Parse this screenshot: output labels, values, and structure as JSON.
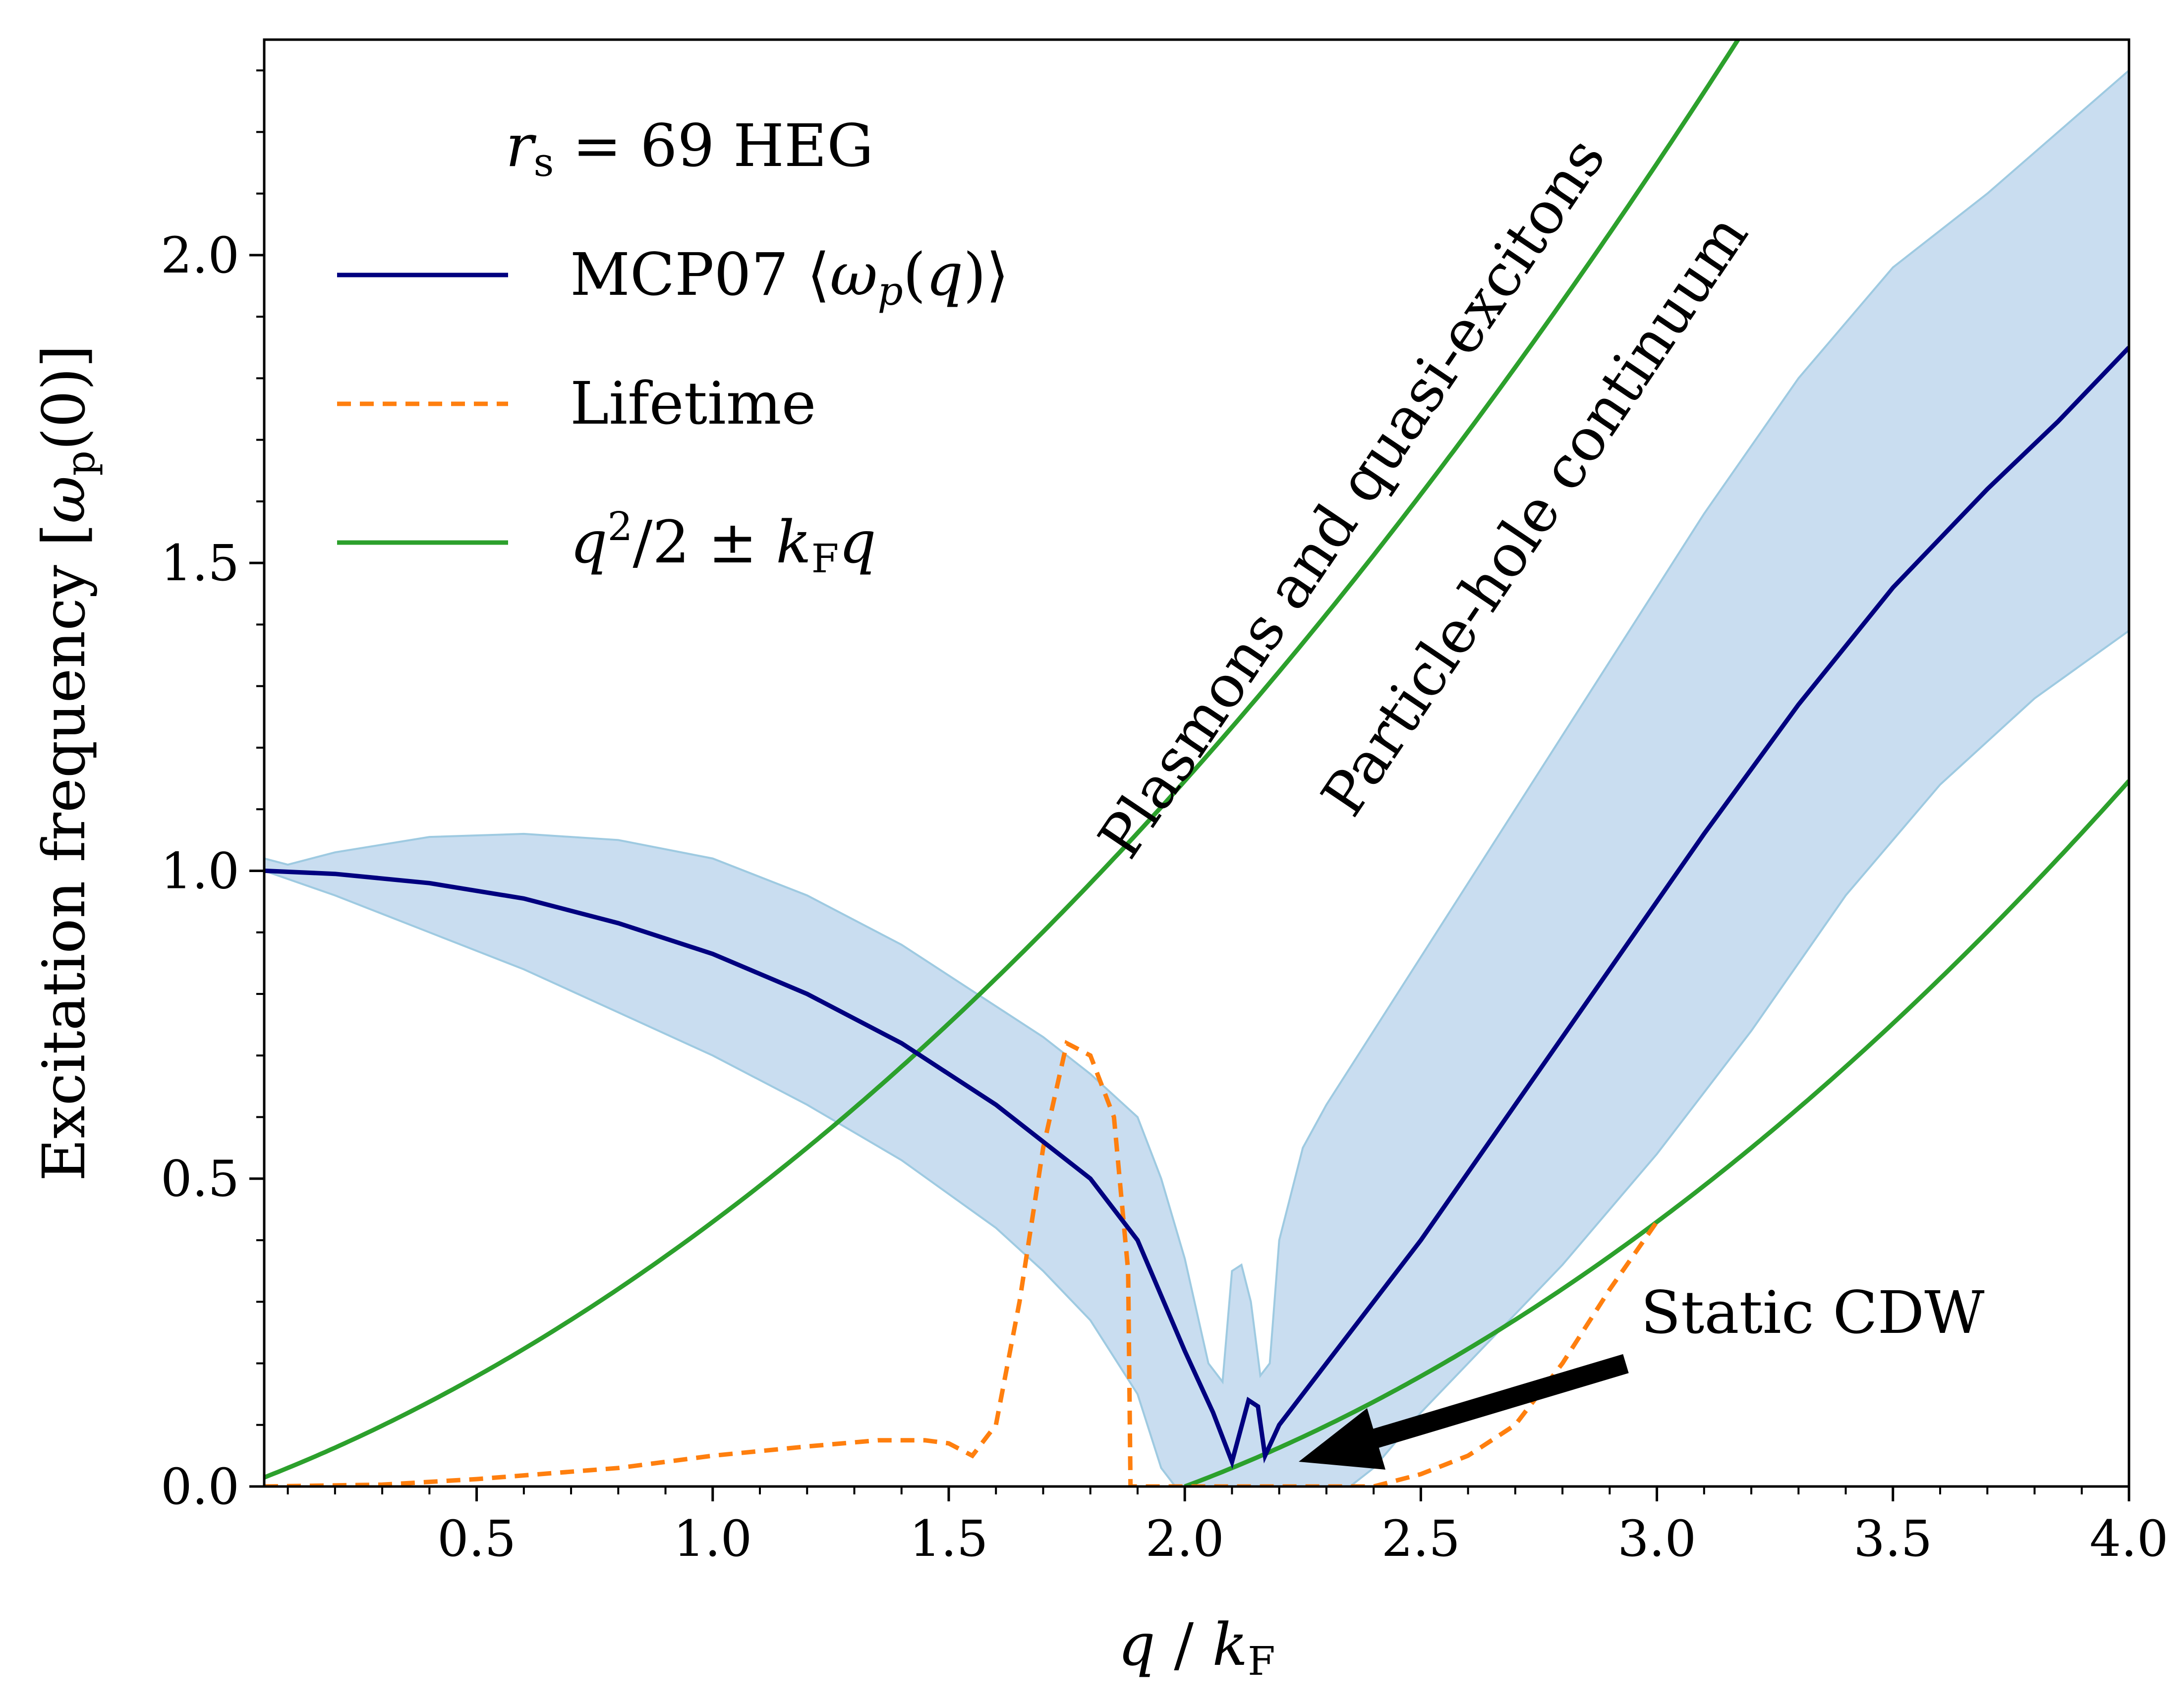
{
  "chart_data": {
    "type": "line",
    "xlabel": "q / k_F",
    "ylabel": "Excitation frequency [ω_p(0)]",
    "xlim": [
      0.05,
      4.0
    ],
    "ylim": [
      0.0,
      2.35
    ],
    "x_ticks": [
      0.5,
      1.0,
      1.5,
      2.0,
      2.5,
      3.0,
      3.5,
      4.0
    ],
    "x_tick_labels": [
      "0.5",
      "1.0",
      "1.5",
      "2.0",
      "2.5",
      "3.0",
      "3.5",
      "4.0"
    ],
    "y_ticks": [
      0.0,
      0.5,
      1.0,
      1.5,
      2.0
    ],
    "y_tick_labels": [
      "0.0",
      "0.5",
      "1.0",
      "1.5",
      "2.0"
    ],
    "grid": false,
    "legend": {
      "title": "r_s = 69 HEG",
      "placement": "top-left",
      "entries": [
        "MCP07 ⟨ω_p(q)⟩",
        "Lifetime",
        "q²/2 ± k_F q"
      ]
    },
    "colors": {
      "mcp07": "#00007f",
      "lifetime": "#ff7f0e",
      "particle_hole": "#2ca02c",
      "band": "#c6dbef",
      "band_edge": "#9ecae1"
    },
    "series": [
      {
        "name": "MCP07 ⟨ω_p(q)⟩",
        "style": "solid",
        "points": [
          [
            0.05,
            1.0
          ],
          [
            0.2,
            0.995
          ],
          [
            0.4,
            0.98
          ],
          [
            0.6,
            0.955
          ],
          [
            0.8,
            0.915
          ],
          [
            1.0,
            0.865
          ],
          [
            1.2,
            0.8
          ],
          [
            1.4,
            0.72
          ],
          [
            1.6,
            0.62
          ],
          [
            1.8,
            0.5
          ],
          [
            1.9,
            0.4
          ],
          [
            2.0,
            0.22
          ],
          [
            2.06,
            0.12
          ],
          [
            2.1,
            0.04
          ],
          [
            2.135,
            0.14
          ],
          [
            2.155,
            0.13
          ],
          [
            2.17,
            0.05
          ],
          [
            2.2,
            0.1
          ],
          [
            2.3,
            0.2
          ],
          [
            2.5,
            0.4
          ],
          [
            2.7,
            0.62
          ],
          [
            2.9,
            0.84
          ],
          [
            3.1,
            1.06
          ],
          [
            3.3,
            1.27
          ],
          [
            3.5,
            1.46
          ],
          [
            3.7,
            1.62
          ],
          [
            3.85,
            1.73
          ],
          [
            4.0,
            1.85
          ]
        ]
      },
      {
        "name": "Lifetime",
        "style": "dashed",
        "points": [
          [
            0.05,
            0.0
          ],
          [
            0.3,
            0.003
          ],
          [
            0.5,
            0.012
          ],
          [
            0.8,
            0.03
          ],
          [
            1.0,
            0.05
          ],
          [
            1.2,
            0.065
          ],
          [
            1.35,
            0.075
          ],
          [
            1.45,
            0.075
          ],
          [
            1.5,
            0.07
          ],
          [
            1.55,
            0.05
          ],
          [
            1.6,
            0.1
          ],
          [
            1.65,
            0.3
          ],
          [
            1.7,
            0.55
          ],
          [
            1.75,
            0.72
          ],
          [
            1.8,
            0.7
          ],
          [
            1.85,
            0.6
          ],
          [
            1.88,
            0.35
          ],
          [
            1.885,
            0.0
          ],
          [
            2.0,
            0.0
          ],
          [
            2.3,
            0.0
          ],
          [
            2.4,
            0.0
          ],
          [
            2.5,
            0.02
          ],
          [
            2.6,
            0.05
          ],
          [
            2.7,
            0.1
          ],
          [
            2.8,
            0.2
          ],
          [
            2.9,
            0.32
          ],
          [
            3.0,
            0.43
          ]
        ]
      },
      {
        "name": "q²/2 ± k_F q (upper)",
        "style": "solid",
        "formula": "upper"
      },
      {
        "name": "q²/2 ± k_F q (lower)",
        "style": "solid",
        "formula": "lower"
      }
    ],
    "band": {
      "upper": [
        [
          0.05,
          1.02
        ],
        [
          0.1,
          1.01
        ],
        [
          0.2,
          1.03
        ],
        [
          0.4,
          1.055
        ],
        [
          0.6,
          1.06
        ],
        [
          0.8,
          1.05
        ],
        [
          1.0,
          1.02
        ],
        [
          1.2,
          0.96
        ],
        [
          1.4,
          0.88
        ],
        [
          1.6,
          0.78
        ],
        [
          1.7,
          0.73
        ],
        [
          1.8,
          0.67
        ],
        [
          1.9,
          0.6
        ],
        [
          1.95,
          0.5
        ],
        [
          2.0,
          0.37
        ],
        [
          2.05,
          0.2
        ],
        [
          2.08,
          0.17
        ],
        [
          2.1,
          0.35
        ],
        [
          2.12,
          0.36
        ],
        [
          2.14,
          0.3
        ],
        [
          2.16,
          0.18
        ],
        [
          2.18,
          0.2
        ],
        [
          2.2,
          0.4
        ],
        [
          2.25,
          0.55
        ],
        [
          2.3,
          0.62
        ],
        [
          2.5,
          0.86
        ],
        [
          2.7,
          1.1
        ],
        [
          2.9,
          1.34
        ],
        [
          3.1,
          1.58
        ],
        [
          3.3,
          1.8
        ],
        [
          3.5,
          1.98
        ],
        [
          3.7,
          2.1
        ],
        [
          3.85,
          2.2
        ],
        [
          4.0,
          2.3
        ]
      ],
      "lower": [
        [
          0.05,
          1.0
        ],
        [
          0.2,
          0.96
        ],
        [
          0.4,
          0.9
        ],
        [
          0.6,
          0.84
        ],
        [
          0.8,
          0.77
        ],
        [
          1.0,
          0.7
        ],
        [
          1.2,
          0.62
        ],
        [
          1.4,
          0.53
        ],
        [
          1.6,
          0.42
        ],
        [
          1.7,
          0.35
        ],
        [
          1.8,
          0.27
        ],
        [
          1.9,
          0.15
        ],
        [
          1.95,
          0.03
        ],
        [
          1.98,
          0.0
        ],
        [
          2.2,
          0.0
        ],
        [
          2.35,
          0.0
        ],
        [
          2.4,
          0.03
        ],
        [
          2.5,
          0.12
        ],
        [
          2.6,
          0.2
        ],
        [
          2.8,
          0.36
        ],
        [
          3.0,
          0.54
        ],
        [
          3.2,
          0.74
        ],
        [
          3.4,
          0.96
        ],
        [
          3.6,
          1.14
        ],
        [
          3.8,
          1.28
        ],
        [
          4.0,
          1.39
        ]
      ]
    },
    "annotations": {
      "plasmons": "Plasmons and quasi-excitons",
      "particle_hole": "Particle-hole continuum",
      "static_cdw": "Static CDW"
    }
  }
}
